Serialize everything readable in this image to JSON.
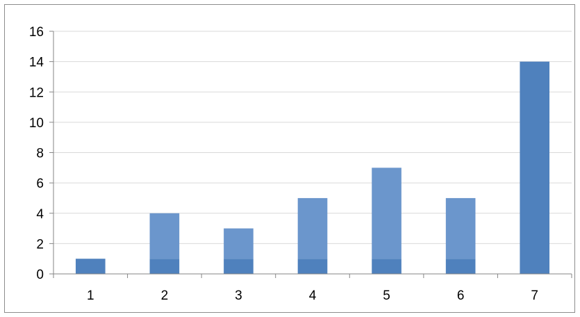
{
  "chart_data": {
    "type": "bar",
    "categories": [
      "1",
      "2",
      "3",
      "4",
      "5",
      "6",
      "7"
    ],
    "series": [
      {
        "values": [
          1,
          1,
          1,
          1,
          1,
          1,
          14
        ]
      },
      {
        "values": [
          0,
          3,
          2,
          4,
          6,
          4,
          0
        ]
      }
    ],
    "stacked": true,
    "ylim": [
      0,
      16
    ],
    "yticks": [
      "0",
      "2",
      "4",
      "6",
      "8",
      "10",
      "12",
      "14",
      "16"
    ],
    "grid": true,
    "legend": "none",
    "colors": {
      "base": "#4f81bd",
      "upper": "#6b96cc",
      "grid": "#d9d9d9",
      "axis": "#868686"
    }
  }
}
